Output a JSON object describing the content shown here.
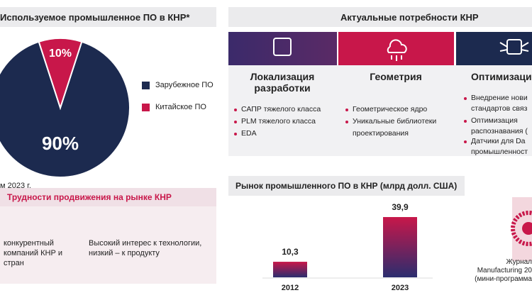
{
  "chart_data": [
    {
      "type": "pie",
      "title": "Используемое промышленное ПО в КНР*",
      "categories": [
        "Зарубежное ПО",
        "Китайское ПО"
      ],
      "values": [
        90,
        10
      ],
      "value_labels": [
        "90%",
        "10%"
      ],
      "colors": [
        "#1c2a4f",
        "#c8174a"
      ],
      "note": "м 2023 г."
    },
    {
      "type": "bar",
      "title": "Рынок промышленного ПО в КНР (млрд долл. США)",
      "categories": [
        "2012",
        "2023"
      ],
      "values": [
        10.3,
        39.9
      ],
      "value_labels": [
        "10,3",
        "39,9"
      ],
      "colors": [
        "#c8174a",
        "#2b2d6e"
      ]
    }
  ],
  "needs": {
    "title": "Актуальные потребности КНР",
    "columns": [
      {
        "title": [
          "Локализация",
          "разработки"
        ],
        "items": [
          [
            "САПР тяжелого класса"
          ],
          [
            "PLM тяжелого класса"
          ],
          [
            "EDA"
          ]
        ]
      },
      {
        "title": [
          "Геометрия"
        ],
        "items": [
          [
            "Геометрическое ядро"
          ],
          [
            "Уникальные библиотеки",
            "проектирования"
          ]
        ]
      },
      {
        "title": [
          "Оптимизаци"
        ],
        "items": [
          [
            "Внедрение нови",
            "стандартов связ"
          ],
          [
            "Оптимизация",
            "распознавания ("
          ],
          [
            "Датчики для Da",
            "промышленност"
          ]
        ]
      }
    ]
  },
  "difficulties": {
    "title": "Трудности продвижения на рынке КНР",
    "items": [
      [
        "конкурентный",
        "компаний КНР и",
        "стран"
      ],
      [
        "Высокий интерес к технологии,",
        "низкий – к продукту"
      ]
    ]
  },
  "qr_caption": [
    "Журнал",
    "Manufacturing 20",
    "(мини-программа"
  ]
}
